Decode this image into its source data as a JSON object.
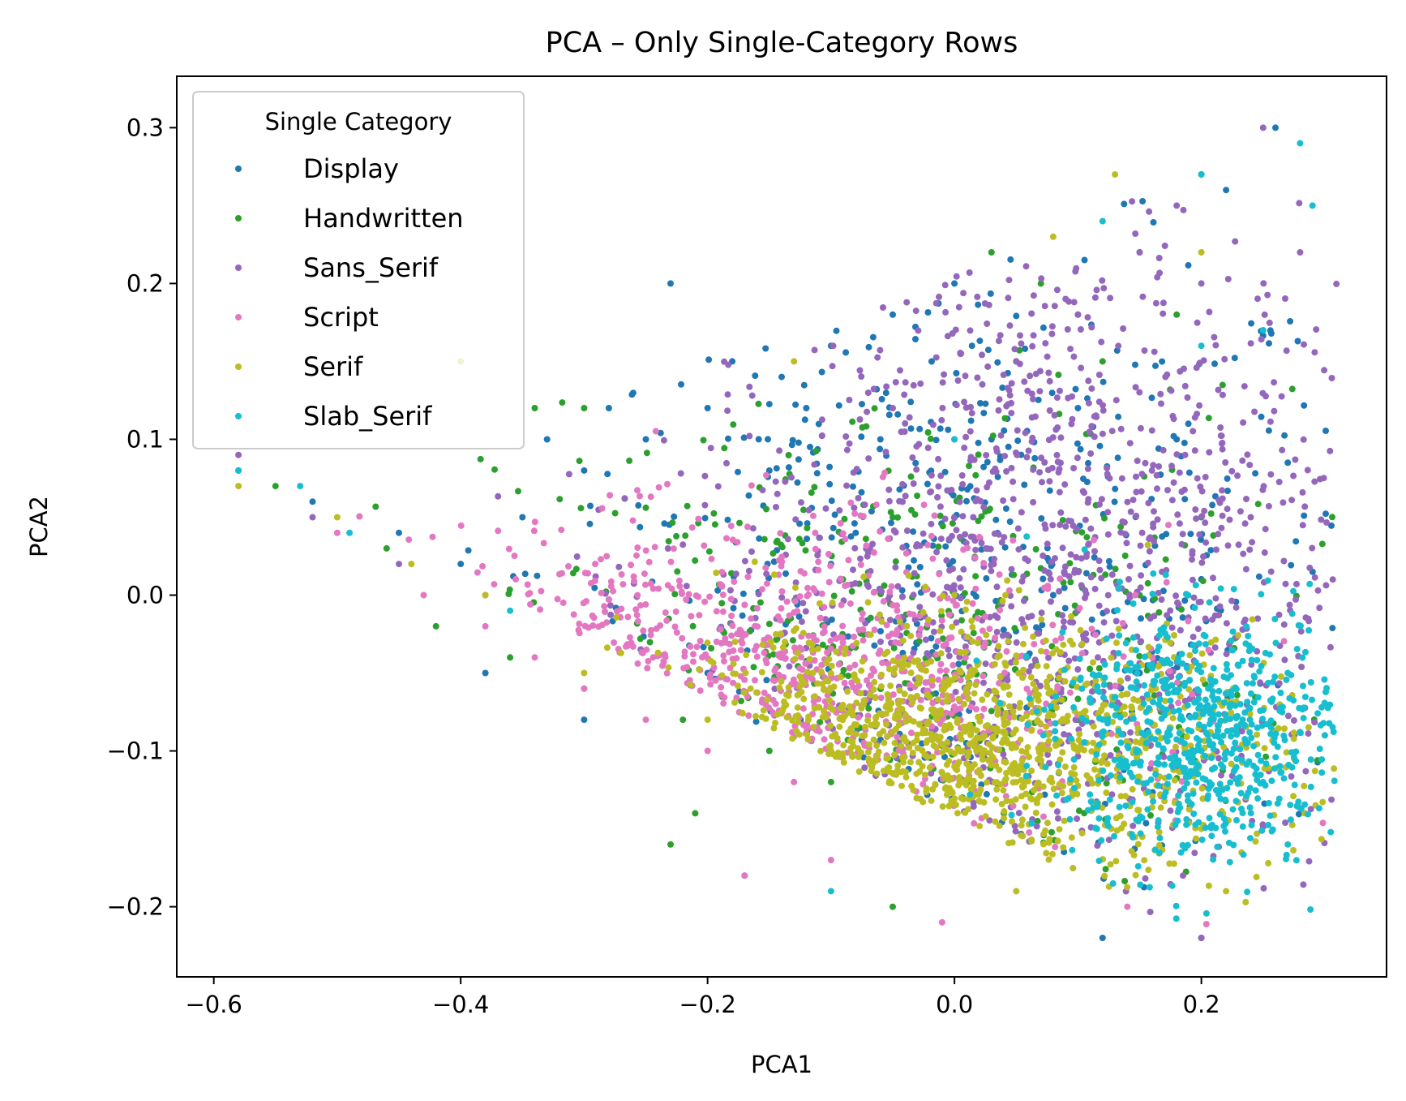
{
  "chart_data": {
    "type": "scatter",
    "title": "PCA – Only Single-Category Rows",
    "xlabel": "PCA1",
    "ylabel": "PCA2",
    "xlim": [
      -0.63,
      0.35
    ],
    "ylim": [
      -0.245,
      0.333
    ],
    "xticks": [
      -0.6,
      -0.4,
      -0.2,
      0.0,
      0.2
    ],
    "xtick_labels": [
      "−0.6",
      "−0.4",
      "−0.2",
      "0.0",
      "0.2"
    ],
    "yticks": [
      -0.2,
      -0.1,
      0.0,
      0.1,
      0.2,
      0.3
    ],
    "ytick_labels": [
      "−0.2",
      "−0.1",
      "0.0",
      "0.1",
      "0.2",
      "0.3"
    ],
    "grid": false,
    "legend": {
      "title": "Single Category",
      "position": "upper-left"
    },
    "series": [
      {
        "name": "Display",
        "color": "#1f77b4",
        "points": [
          [
            -0.58,
            0.08
          ],
          [
            -0.52,
            0.06
          ],
          [
            -0.45,
            0.04
          ],
          [
            -0.4,
            0.02
          ],
          [
            -0.35,
            0.05
          ],
          [
            -0.3,
            0.08
          ],
          [
            -0.25,
            0.1
          ],
          [
            -0.2,
            0.12
          ],
          [
            -0.23,
            0.2
          ],
          [
            -0.18,
            0.15
          ],
          [
            -0.15,
            0.08
          ],
          [
            -0.1,
            0.16
          ],
          [
            -0.05,
            0.18
          ],
          [
            0.0,
            0.2
          ],
          [
            0.05,
            0.15
          ],
          [
            0.1,
            0.12
          ],
          [
            0.15,
            0.22
          ],
          [
            0.2,
            0.27
          ],
          [
            0.26,
            0.3
          ],
          [
            0.27,
            0.085
          ],
          [
            0.12,
            -0.22
          ],
          [
            0.2,
            -0.22
          ],
          [
            -0.17,
            -0.18
          ],
          [
            -0.38,
            -0.05
          ],
          [
            -0.3,
            -0.08
          ],
          [
            -0.2,
            -0.05
          ],
          [
            -0.1,
            0.02
          ],
          [
            0.0,
            0.05
          ],
          [
            0.08,
            0.0
          ],
          [
            0.15,
            -0.05
          ],
          [
            -0.12,
            0.12
          ],
          [
            -0.08,
            0.04
          ],
          [
            0.1,
            0.18
          ],
          [
            0.18,
            0.1
          ],
          [
            -0.28,
            0.12
          ],
          [
            -0.33,
            0.1
          ],
          [
            0.22,
            0.26
          ],
          [
            0.03,
            0.1
          ],
          [
            -0.06,
            0.1
          ],
          [
            -0.14,
            0.14
          ]
        ],
        "generated": 450,
        "center": [
          0.0,
          0.02
        ],
        "spread": [
          0.17,
          0.1
        ]
      },
      {
        "name": "Handwritten",
        "color": "#2ca02c",
        "points": [
          [
            -0.55,
            0.07
          ],
          [
            -0.46,
            0.03
          ],
          [
            -0.42,
            -0.02
          ],
          [
            -0.36,
            -0.04
          ],
          [
            -0.3,
            -0.06
          ],
          [
            -0.22,
            -0.08
          ],
          [
            -0.15,
            -0.1
          ],
          [
            -0.1,
            -0.12
          ],
          [
            0.03,
            0.22
          ],
          [
            -0.21,
            -0.14
          ],
          [
            -0.23,
            -0.16
          ],
          [
            -0.05,
            -0.2
          ],
          [
            0.04,
            -0.14
          ],
          [
            0.1,
            -0.08
          ],
          [
            0.15,
            0.0
          ],
          [
            0.2,
            0.05
          ],
          [
            -0.3,
            0.12
          ],
          [
            -0.34,
            0.12
          ],
          [
            0.07,
            0.2
          ],
          [
            0.12,
            0.15
          ],
          [
            -0.05,
            0.05
          ],
          [
            0.0,
            -0.05
          ],
          [
            0.18,
            0.18
          ]
        ],
        "generated": 360,
        "center": [
          -0.05,
          -0.03
        ],
        "spread": [
          0.16,
          0.08
        ]
      },
      {
        "name": "Sans_Serif",
        "color": "#9467bd",
        "points": [
          [
            -0.58,
            0.09
          ],
          [
            -0.52,
            0.05
          ],
          [
            -0.45,
            0.02
          ],
          [
            -0.38,
            0.0
          ],
          [
            0.25,
            0.3
          ],
          [
            0.28,
            0.22
          ],
          [
            0.2,
            0.2
          ],
          [
            0.18,
            0.25
          ],
          [
            0.15,
            0.22
          ],
          [
            0.1,
            0.18
          ],
          [
            0.05,
            0.15
          ],
          [
            0.0,
            0.1
          ],
          [
            -0.05,
            0.12
          ],
          [
            0.2,
            -0.22
          ],
          [
            0.22,
            -0.1
          ],
          [
            0.16,
            0.08
          ],
          [
            0.24,
            0.05
          ]
        ],
        "generated": 1100,
        "center": [
          0.08,
          0.02
        ],
        "spread": [
          0.15,
          0.11
        ]
      },
      {
        "name": "Script",
        "color": "#e377c2",
        "points": [
          [
            -0.58,
            0.08
          ],
          [
            -0.5,
            0.04
          ],
          [
            -0.43,
            0.0
          ],
          [
            -0.38,
            -0.02
          ],
          [
            -0.34,
            -0.04
          ],
          [
            -0.3,
            -0.06
          ],
          [
            -0.25,
            -0.08
          ],
          [
            -0.2,
            -0.1
          ],
          [
            -0.13,
            -0.12
          ],
          [
            -0.1,
            -0.17
          ],
          [
            -0.01,
            -0.21
          ],
          [
            0.14,
            -0.2
          ],
          [
            -0.17,
            -0.18
          ]
        ],
        "generated": 750,
        "center": [
          -0.18,
          -0.06
        ],
        "spread": [
          0.15,
          0.05
        ]
      },
      {
        "name": "Serif",
        "color": "#bcbd22",
        "points": [
          [
            -0.58,
            0.07
          ],
          [
            -0.5,
            0.05
          ],
          [
            -0.44,
            0.02
          ],
          [
            -0.38,
            0.0
          ],
          [
            -0.3,
            -0.05
          ],
          [
            -0.2,
            -0.08
          ],
          [
            -0.1,
            -0.1
          ],
          [
            0.0,
            -0.11
          ],
          [
            0.05,
            -0.12
          ],
          [
            0.1,
            -0.1
          ],
          [
            0.15,
            -0.12
          ],
          [
            0.2,
            -0.15
          ],
          [
            0.22,
            -0.19
          ],
          [
            -0.4,
            0.15
          ],
          [
            -0.13,
            0.15
          ],
          [
            0.13,
            0.27
          ],
          [
            0.2,
            0.22
          ],
          [
            0.08,
            0.23
          ],
          [
            0.0,
            0.0
          ],
          [
            0.05,
            -0.19
          ]
        ],
        "generated": 1100,
        "center": [
          0.0,
          -0.1
        ],
        "spread": [
          0.13,
          0.04
        ]
      },
      {
        "name": "Slab_Serif",
        "color": "#17becf",
        "points": [
          [
            -0.58,
            0.08
          ],
          [
            -0.53,
            0.07
          ],
          [
            -0.49,
            0.04
          ],
          [
            -0.36,
            -0.01
          ],
          [
            0.2,
            -0.1
          ],
          [
            0.22,
            -0.08
          ],
          [
            0.25,
            -0.12
          ],
          [
            0.27,
            -0.05
          ],
          [
            0.3,
            -0.09
          ],
          [
            0.29,
            0.25
          ],
          [
            0.28,
            0.29
          ],
          [
            0.2,
            0.27
          ],
          [
            0.12,
            0.24
          ],
          [
            0.0,
            0.1
          ],
          [
            -0.1,
            -0.19
          ],
          [
            0.2,
            0.16
          ],
          [
            0.25,
            0.17
          ],
          [
            0.27,
            -0.16
          ]
        ],
        "generated": 650,
        "center": [
          0.2,
          -0.09
        ],
        "spread": [
          0.06,
          0.04
        ]
      }
    ]
  }
}
